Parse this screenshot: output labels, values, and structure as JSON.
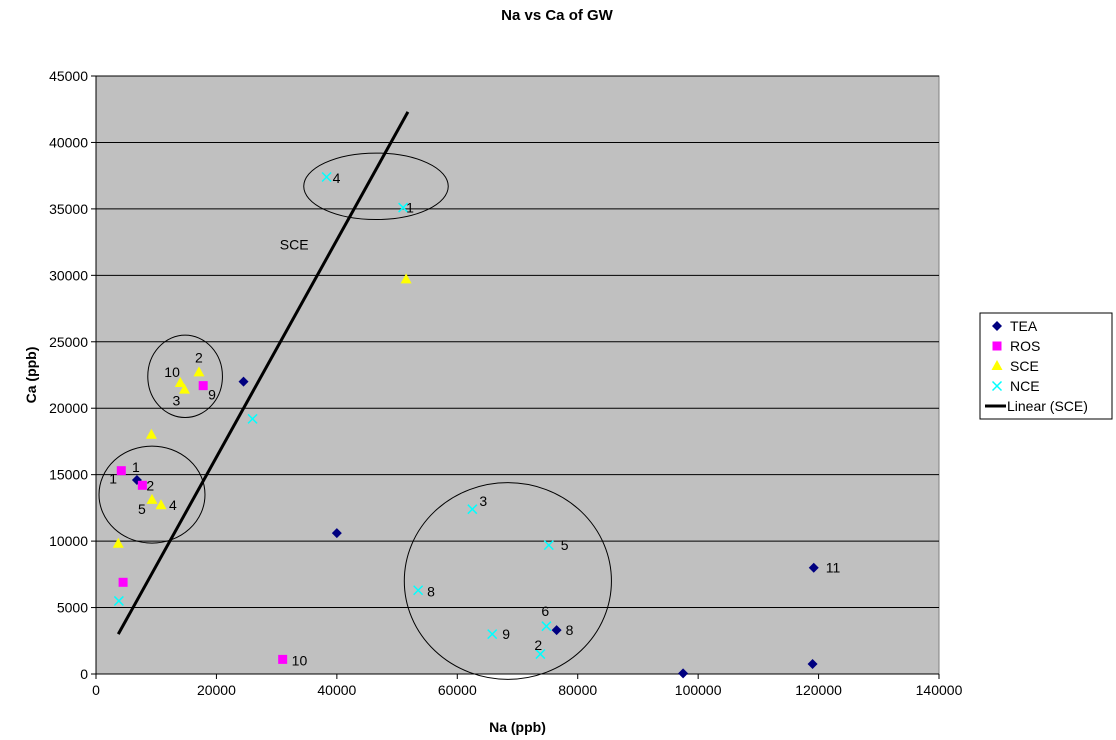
{
  "chart_data": {
    "type": "scatter",
    "title": "Na vs Ca of GW",
    "xlabel": "Na (ppb)",
    "ylabel": "Ca (ppb)",
    "xlim": [
      0,
      140000
    ],
    "ylim": [
      0,
      45000
    ],
    "xticks": [
      0,
      20000,
      40000,
      60000,
      80000,
      100000,
      120000,
      140000
    ],
    "yticks": [
      0,
      5000,
      10000,
      15000,
      20000,
      25000,
      30000,
      35000,
      40000,
      45000
    ],
    "grid": "horizontal",
    "plot_background": "#c0c0c0",
    "legend_placement": "right",
    "series": [
      {
        "name": "TEA",
        "marker": "diamond",
        "color": "#000080",
        "points": [
          {
            "x": 6800,
            "y": 14600,
            "label": "1"
          },
          {
            "x": 24500,
            "y": 22000,
            "label": ""
          },
          {
            "x": 40000,
            "y": 10600,
            "label": ""
          },
          {
            "x": 76500,
            "y": 3300,
            "label": "8"
          },
          {
            "x": 97500,
            "y": 50,
            "label": ""
          },
          {
            "x": 119200,
            "y": 8000,
            "label": "11"
          },
          {
            "x": 119000,
            "y": 750,
            "label": ""
          }
        ]
      },
      {
        "name": "ROS",
        "marker": "square",
        "color": "#ff00ff",
        "points": [
          {
            "x": 4200,
            "y": 15300,
            "label": "1"
          },
          {
            "x": 7700,
            "y": 14200,
            "label": "2"
          },
          {
            "x": 17800,
            "y": 21700,
            "label": "9"
          },
          {
            "x": 4500,
            "y": 6900,
            "label": ""
          },
          {
            "x": 31000,
            "y": 1100,
            "label": "10"
          }
        ]
      },
      {
        "name": "SCE",
        "marker": "triangle",
        "color": "#ffff00",
        "points": [
          {
            "x": 14000,
            "y": 21900,
            "label": "10"
          },
          {
            "x": 17100,
            "y": 22700,
            "label": "2"
          },
          {
            "x": 14700,
            "y": 21400,
            "label": "3"
          },
          {
            "x": 9200,
            "y": 18000,
            "label": ""
          },
          {
            "x": 9300,
            "y": 13100,
            "label": "5"
          },
          {
            "x": 10800,
            "y": 12700,
            "label": "4"
          },
          {
            "x": 3700,
            "y": 9800,
            "label": ""
          },
          {
            "x": 51500,
            "y": 29700,
            "label": ""
          }
        ]
      },
      {
        "name": "NCE",
        "marker": "x",
        "color": "#00ffff",
        "points": [
          {
            "x": 38300,
            "y": 37400,
            "label": "4"
          },
          {
            "x": 51000,
            "y": 35100,
            "label": "1"
          },
          {
            "x": 26000,
            "y": 19200,
            "label": ""
          },
          {
            "x": 62500,
            "y": 12400,
            "label": "3"
          },
          {
            "x": 75200,
            "y": 9700,
            "label": "5"
          },
          {
            "x": 53500,
            "y": 6300,
            "label": "8"
          },
          {
            "x": 74800,
            "y": 3600,
            "label": "6"
          },
          {
            "x": 65800,
            "y": 3000,
            "label": "9"
          },
          {
            "x": 73800,
            "y": 1500,
            "label": "2"
          },
          {
            "x": 3800,
            "y": 5500,
            "label": ""
          }
        ]
      }
    ],
    "trendline": {
      "name": "Linear (SCE)",
      "color": "#000000",
      "from": {
        "x": 3700,
        "y": 3000
      },
      "to": {
        "x": 51800,
        "y": 42300
      },
      "annotation": "SCE"
    },
    "annotations": [
      {
        "shape": "ellipse",
        "cx": 46500,
        "cy": 36700,
        "rx": 12000,
        "ry": 2500
      },
      {
        "shape": "ellipse",
        "cx": 14800,
        "cy": 22400,
        "rx": 6200,
        "ry": 3100
      },
      {
        "shape": "ellipse",
        "cx": 9300,
        "cy": 13500,
        "rx": 8800,
        "ry": 3650
      },
      {
        "shape": "ellipse",
        "cx": 68400,
        "cy": 7000,
        "rx": 17200,
        "ry": 7400
      }
    ]
  }
}
